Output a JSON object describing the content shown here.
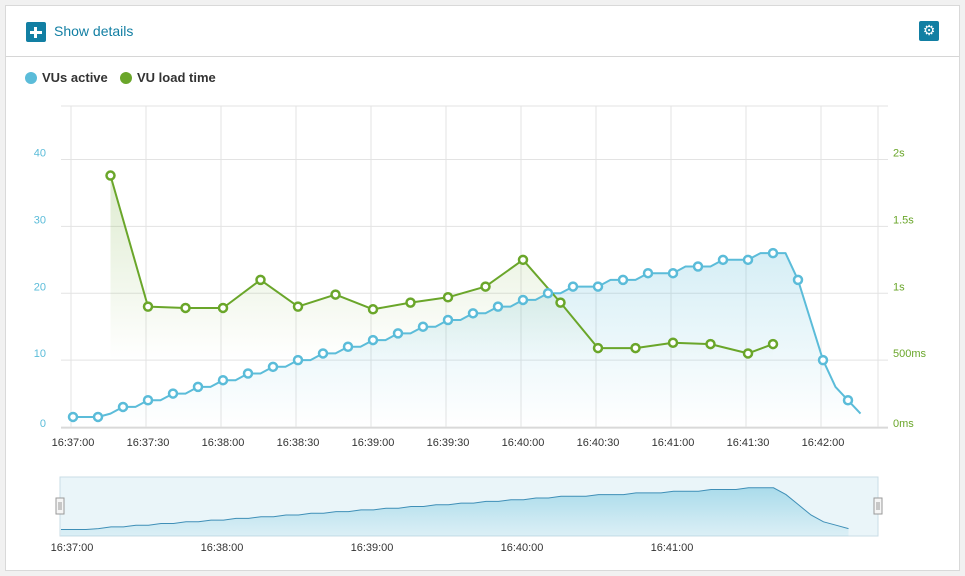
{
  "header": {
    "show_details_label": "Show details",
    "plus_icon": "plus-icon",
    "settings_icon": "gear-icon"
  },
  "colors": {
    "accent": "#127fa3",
    "vus": "#5bbcd9",
    "load": "#6aa62a",
    "grid": "#e3e3e3"
  },
  "chart_data": {
    "type": "line",
    "legend_position": "top-left",
    "grid": true,
    "x_ticks": [
      "16:37:00",
      "16:37:30",
      "16:38:00",
      "16:38:30",
      "16:39:00",
      "16:39:30",
      "16:40:00",
      "16:40:30",
      "16:41:00",
      "16:41:30",
      "16:42:00"
    ],
    "y_left": {
      "ticks": [
        "0",
        "10",
        "20",
        "30",
        "40"
      ],
      "min": 0,
      "max": 48
    },
    "y_right": {
      "ticks": [
        "0ms",
        "500ms",
        "1s",
        "1.5s",
        "2s"
      ],
      "min": 0,
      "max": 2.4
    },
    "series": [
      {
        "name": "VUs active",
        "axis": "left",
        "x": [
          "16:37:00",
          "16:37:05",
          "16:37:10",
          "16:37:15",
          "16:37:20",
          "16:37:25",
          "16:37:30",
          "16:37:35",
          "16:37:40",
          "16:37:45",
          "16:37:50",
          "16:37:55",
          "16:38:00",
          "16:38:05",
          "16:38:10",
          "16:38:15",
          "16:38:20",
          "16:38:25",
          "16:38:30",
          "16:38:35",
          "16:38:40",
          "16:38:45",
          "16:38:50",
          "16:38:55",
          "16:39:00",
          "16:39:05",
          "16:39:10",
          "16:39:15",
          "16:39:20",
          "16:39:25",
          "16:39:30",
          "16:39:35",
          "16:39:40",
          "16:39:45",
          "16:39:50",
          "16:39:55",
          "16:40:00",
          "16:40:05",
          "16:40:10",
          "16:40:15",
          "16:40:20",
          "16:40:25",
          "16:40:30",
          "16:40:35",
          "16:40:40",
          "16:40:45",
          "16:40:50",
          "16:40:55",
          "16:41:00",
          "16:41:05",
          "16:41:10",
          "16:41:15",
          "16:41:20",
          "16:41:25",
          "16:41:30",
          "16:41:35",
          "16:41:40",
          "16:41:45",
          "16:41:50",
          "16:41:55",
          "16:42:00",
          "16:42:05",
          "16:42:10",
          "16:42:15"
        ],
        "values": [
          1.5,
          1.5,
          1.5,
          2,
          3,
          3,
          4,
          4,
          5,
          5,
          6,
          6,
          7,
          7,
          8,
          8,
          9,
          9,
          10,
          10,
          11,
          11,
          12,
          12,
          13,
          13,
          14,
          14,
          15,
          15,
          16,
          16,
          17,
          17,
          18,
          18,
          19,
          19,
          20,
          20,
          21,
          21,
          21,
          22,
          22,
          22,
          23,
          23,
          23,
          24,
          24,
          24,
          25,
          25,
          25,
          26,
          26,
          26,
          22,
          16,
          10,
          6,
          4,
          2
        ],
        "point_indices": [
          0,
          2,
          4,
          6,
          8,
          10,
          12,
          14,
          16,
          18,
          20,
          22,
          24,
          26,
          28,
          30,
          32,
          34,
          36,
          38,
          40,
          42,
          44,
          46,
          48,
          50,
          52,
          54,
          56,
          58,
          60,
          62
        ]
      },
      {
        "name": "VU load time",
        "axis": "right",
        "x": [
          "16:37:15",
          "16:37:30",
          "16:37:45",
          "16:38:00",
          "16:38:15",
          "16:38:30",
          "16:38:45",
          "16:39:00",
          "16:39:15",
          "16:39:30",
          "16:39:45",
          "16:40:00",
          "16:40:15",
          "16:40:30",
          "16:40:45",
          "16:41:00",
          "16:41:15",
          "16:41:30",
          "16:41:40"
        ],
        "values": [
          1.88,
          0.9,
          0.89,
          0.89,
          1.1,
          0.9,
          0.99,
          0.88,
          0.93,
          0.97,
          1.05,
          1.25,
          0.93,
          0.59,
          0.59,
          0.63,
          0.62,
          0.55,
          0.62
        ]
      }
    ],
    "navigator": {
      "x_ticks": [
        "16:37:00",
        "16:38:00",
        "16:39:00",
        "16:40:00",
        "16:41:00"
      ]
    }
  }
}
